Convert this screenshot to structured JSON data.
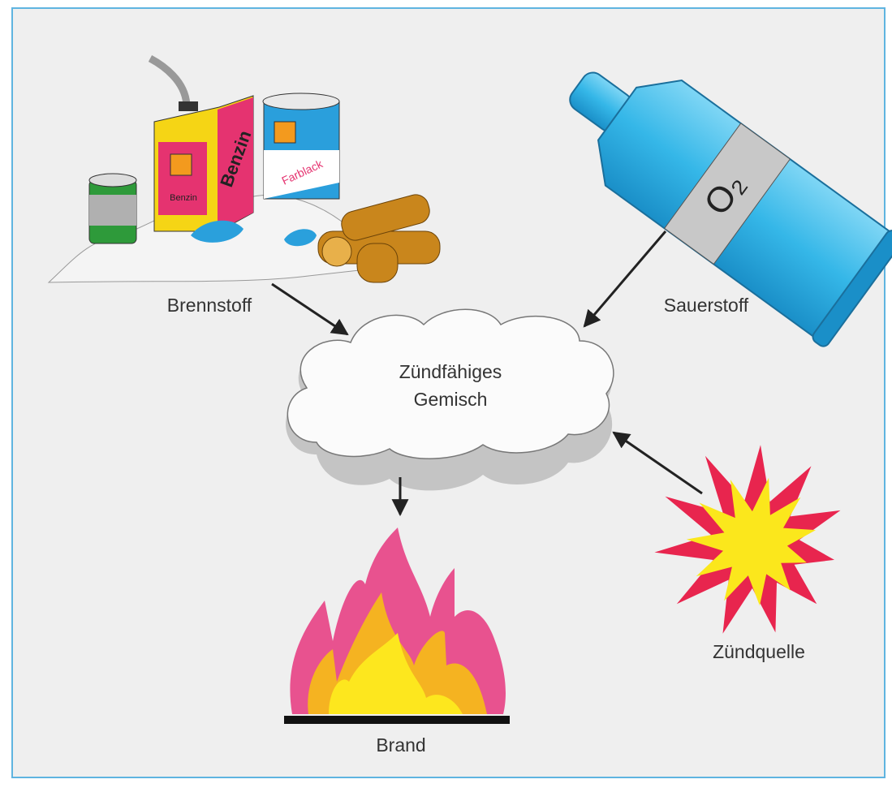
{
  "labels": {
    "fuel": "Brennstoff",
    "oxygen": "Sauerstoff",
    "mixture": [
      "Zündfähiges",
      "Gemisch"
    ],
    "ignition": "Zündquelle",
    "fire": "Brand"
  },
  "illustration_texts": {
    "canister_side": "Benzin",
    "canister_front": "Benzin",
    "paint_can": "Farblack",
    "cylinder": "O₂"
  }
}
